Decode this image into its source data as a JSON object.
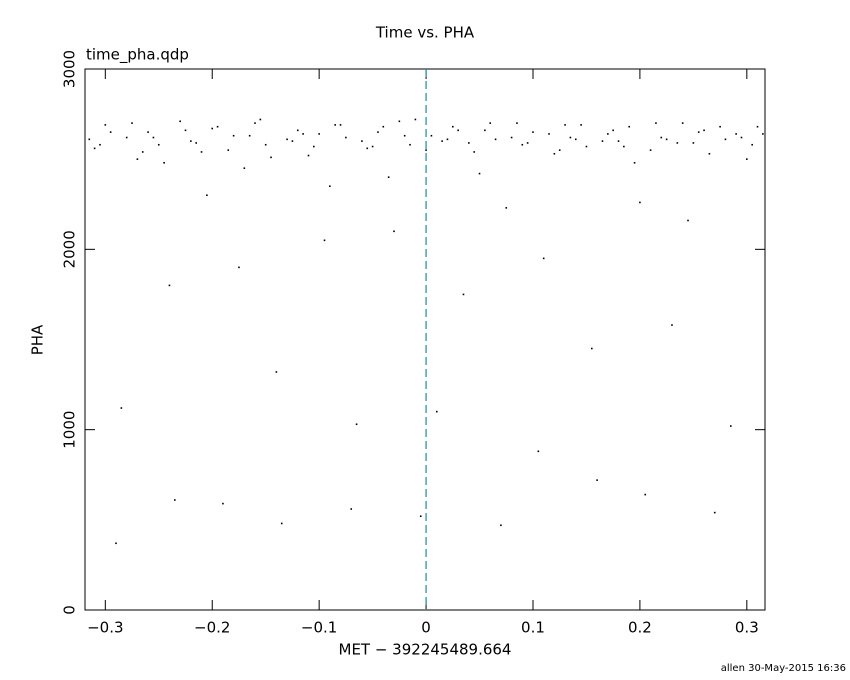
{
  "chart_data": {
    "type": "scatter",
    "title": "Time vs. PHA",
    "subtitle": "time_pha.qdp",
    "x_label": "MET − 392245489.664",
    "y_label": "PHA",
    "footer": "allen 30-May-2015 16:36",
    "xlim": [
      -0.319,
      0.317
    ],
    "ylim": [
      0,
      3000
    ],
    "xticks": [
      {
        "value": -0.3,
        "label": "−0.3"
      },
      {
        "value": -0.2,
        "label": "−0.2"
      },
      {
        "value": -0.1,
        "label": "−0.1"
      },
      0,
      0.1,
      0.2,
      0.3
    ],
    "yticks": [
      0,
      1000,
      2000,
      3000
    ],
    "reference_line": {
      "x": 0,
      "color": "#1b8c9c",
      "style": "dashed"
    },
    "series": [
      {
        "color": "#000000",
        "x": [
          -0.315,
          -0.305,
          -0.295,
          -0.285,
          -0.275,
          -0.265,
          -0.255,
          -0.245,
          -0.235,
          -0.225,
          -0.215,
          -0.205,
          -0.195,
          -0.185,
          -0.175,
          -0.165,
          -0.155,
          -0.145,
          -0.135,
          -0.125,
          -0.115,
          -0.105,
          -0.095,
          -0.085,
          -0.075,
          -0.065,
          -0.055,
          -0.045,
          -0.035,
          -0.025,
          -0.015,
          -0.005,
          0.005,
          0.015,
          0.025,
          0.035,
          0.045,
          0.055,
          0.065,
          0.075,
          0.085,
          0.095,
          0.105,
          0.115,
          0.125,
          0.135,
          0.145,
          0.155,
          0.165,
          0.175,
          0.185,
          0.195,
          0.205,
          0.215,
          0.225,
          0.235,
          0.245,
          0.255,
          0.265,
          0.275,
          0.285,
          0.295,
          0.305,
          0.315,
          -0.31,
          -0.3,
          -0.29,
          -0.28,
          -0.27,
          -0.26,
          -0.25,
          -0.24,
          -0.23,
          -0.22,
          -0.21,
          -0.2,
          -0.19,
          -0.18,
          -0.17,
          -0.16,
          -0.15,
          -0.14,
          -0.13,
          -0.12,
          -0.11,
          -0.1,
          -0.09,
          -0.08,
          -0.07,
          -0.06,
          -0.05,
          -0.04,
          -0.03,
          -0.02,
          -0.01,
          0,
          0.01,
          0.02,
          0.03,
          0.04,
          0.05,
          0.06,
          0.07,
          0.08,
          0.09,
          0.1,
          0.11,
          0.12,
          0.13,
          0.14,
          0.15,
          0.16,
          0.17,
          0.18,
          0.19,
          0.2,
          0.21,
          0.22,
          0.23,
          0.24,
          0.25,
          0.26,
          0.27,
          0.28,
          0.29,
          0.3,
          0.31
        ],
        "values": [
          2610,
          2580,
          2650,
          1120,
          2700,
          2540,
          2620,
          2480,
          610,
          2660,
          2590,
          2300,
          2680,
          2550,
          1900,
          2630,
          2720,
          2510,
          480,
          2600,
          2640,
          2570,
          2050,
          2690,
          2620,
          1030,
          2560,
          2650,
          2400,
          2710,
          2580,
          520,
          2630,
          2600,
          2680,
          1750,
          2540,
          2660,
          2610,
          2230,
          2700,
          2590,
          880,
          2640,
          2550,
          2620,
          2690,
          1450,
          2600,
          2660,
          2570,
          2480,
          640,
          2700,
          2610,
          2590,
          2160,
          2650,
          2530,
          2680,
          1020,
          2620,
          2580,
          2640,
          2560,
          2690,
          370,
          2620,
          2500,
          2650,
          2580,
          1800,
          2710,
          2600,
          2540,
          2670,
          590,
          2630,
          2450,
          2700,
          2580,
          1320,
          2610,
          2660,
          2520,
          2640,
          2350,
          2690,
          560,
          2600,
          2570,
          2680,
          2100,
          2630,
          2720,
          2550,
          1100,
          2610,
          2660,
          2590,
          2420,
          2700,
          470,
          2620,
          2580,
          2650,
          1950,
          2530,
          2690,
          2610,
          2570,
          720,
          2640,
          2600,
          2680,
          2260,
          2550,
          2620,
          1580,
          2700,
          2590,
          2660,
          540,
          2610,
          2640,
          2500,
          2680
        ]
      }
    ]
  }
}
